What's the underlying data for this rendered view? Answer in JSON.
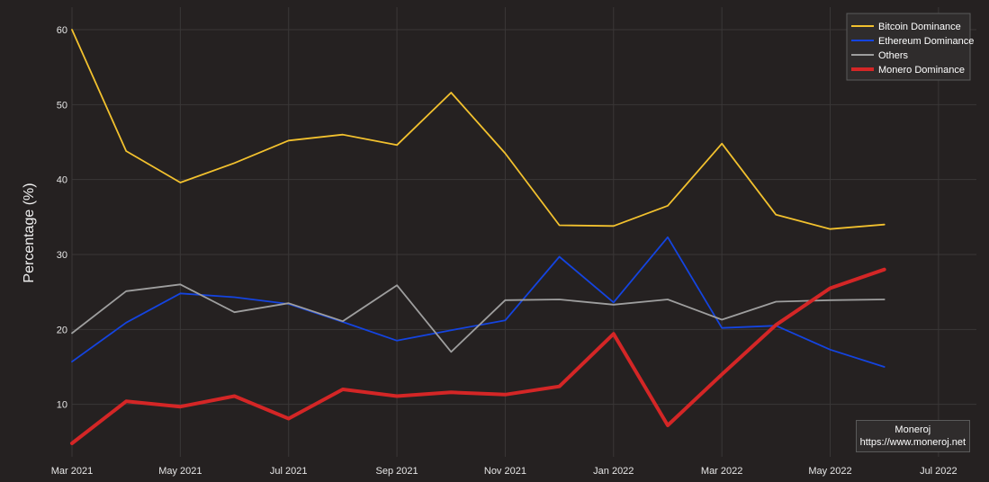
{
  "chart_data": {
    "type": "line",
    "title": "",
    "xlabel": "",
    "ylabel": "Percentage (%)",
    "x_ticks": [
      "Mar 2021",
      "May 2021",
      "Jul 2021",
      "Sep 2021",
      "Nov 2021",
      "Jan 2022",
      "Mar 2022",
      "May 2022",
      "Jul 2022"
    ],
    "x": [
      "2021-03",
      "2021-04",
      "2021-05",
      "2021-06",
      "2021-07",
      "2021-08",
      "2021-09",
      "2021-10",
      "2021-11",
      "2021-12",
      "2022-01",
      "2022-02",
      "2022-03",
      "2022-04",
      "2022-05",
      "2022-06"
    ],
    "ylim": [
      3,
      63
    ],
    "y_ticks": [
      10,
      20,
      30,
      40,
      50,
      60
    ],
    "grid": true,
    "legend_position": "top-right",
    "series": [
      {
        "name": "Bitcoin Dominance",
        "color": "#f2c12e",
        "values": [
          60.0,
          43.8,
          39.6,
          42.2,
          45.2,
          46.0,
          44.6,
          51.6,
          43.5,
          33.9,
          33.8,
          36.5,
          44.8,
          35.3,
          33.4,
          34.0
        ]
      },
      {
        "name": "Ethereum Dominance",
        "color": "#1444e0",
        "values": [
          15.7,
          20.9,
          24.8,
          24.3,
          23.4,
          21.0,
          18.5,
          19.9,
          21.2,
          29.7,
          23.6,
          32.3,
          20.2,
          20.5,
          17.3,
          15.0
        ]
      },
      {
        "name": "Others",
        "color": "#9e9e9e",
        "values": [
          19.5,
          25.1,
          26.0,
          22.3,
          23.5,
          21.1,
          25.9,
          17.0,
          23.9,
          24.0,
          23.3,
          24.0,
          21.3,
          23.7,
          23.9,
          24.0
        ]
      },
      {
        "name": "Monero Dominance",
        "color": "#d42626",
        "values": [
          4.8,
          10.4,
          9.7,
          11.1,
          8.1,
          12.0,
          11.1,
          11.6,
          11.3,
          12.4,
          19.4,
          7.2,
          14.0,
          20.6,
          25.5,
          28.0
        ]
      }
    ],
    "annotation": {
      "line1": "Moneroj",
      "line2": "https://www.moneroj.net"
    }
  }
}
